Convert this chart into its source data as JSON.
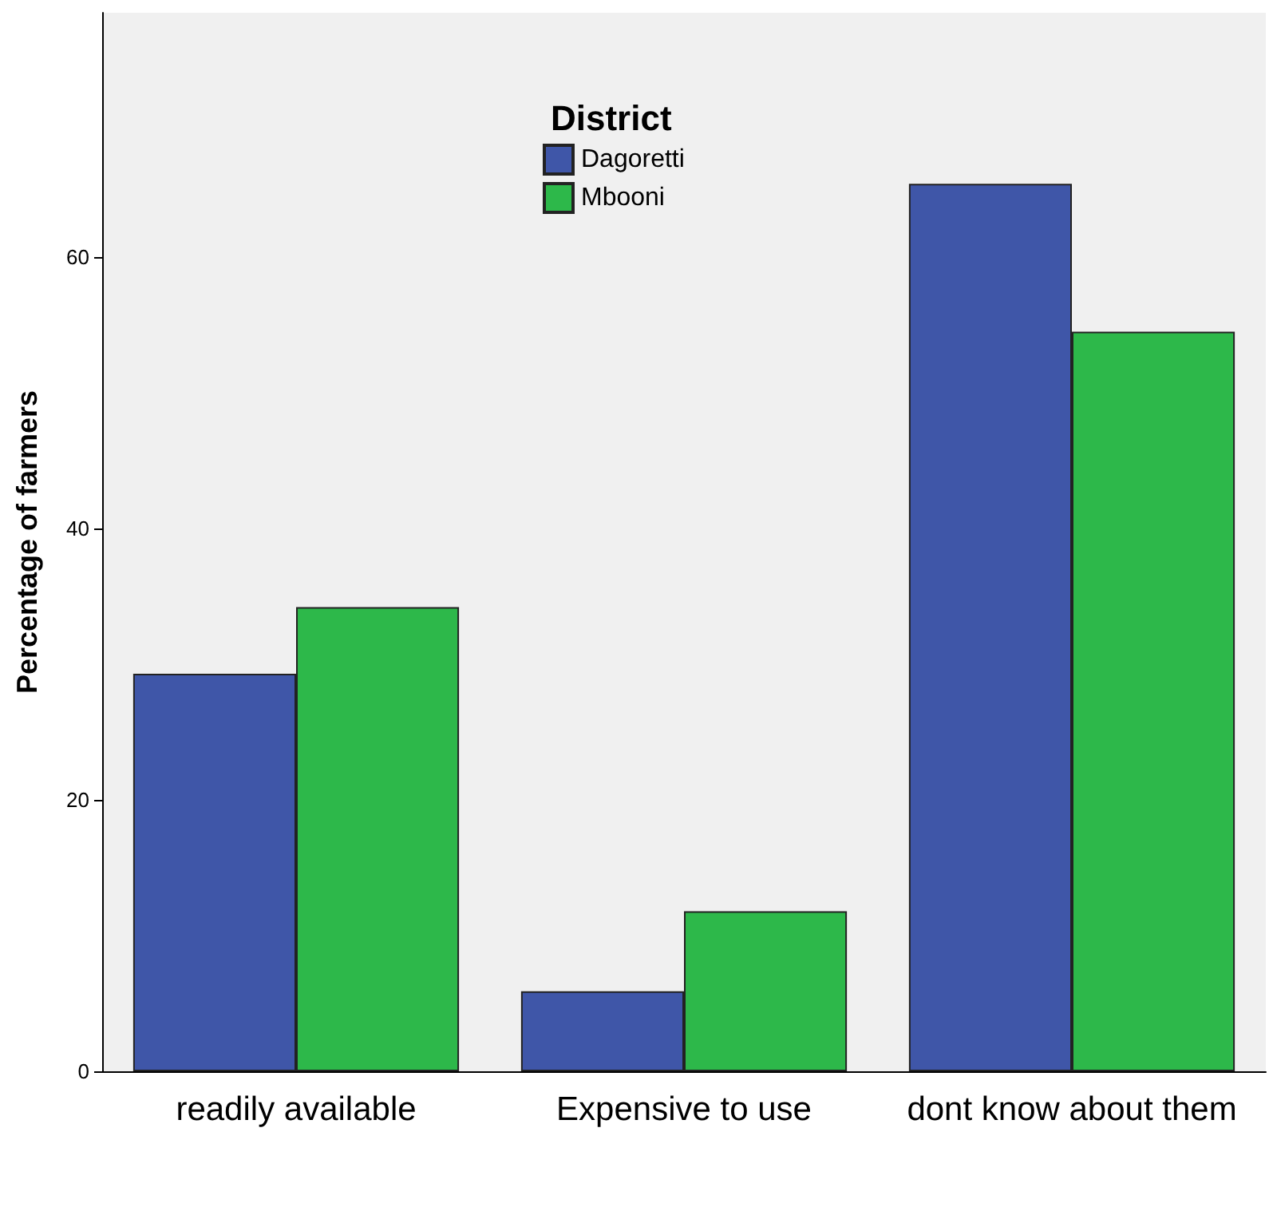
{
  "chart_data": {
    "type": "bar",
    "ylabel": "Percentage of farmers",
    "legend_title": "District",
    "categories": [
      "readily available",
      "Expensive to use",
      "dont know about them"
    ],
    "series": [
      {
        "name": "Dagoretti",
        "color": "#3f56a8",
        "values": [
          29.3,
          5.9,
          65.4
        ]
      },
      {
        "name": "Mbooni",
        "color": "#2db84a",
        "values": [
          34.2,
          11.8,
          54.5
        ]
      }
    ],
    "ylim": [
      0,
      78
    ],
    "yticks": [
      0,
      20,
      40,
      60
    ],
    "grid": false,
    "legend": "top"
  }
}
